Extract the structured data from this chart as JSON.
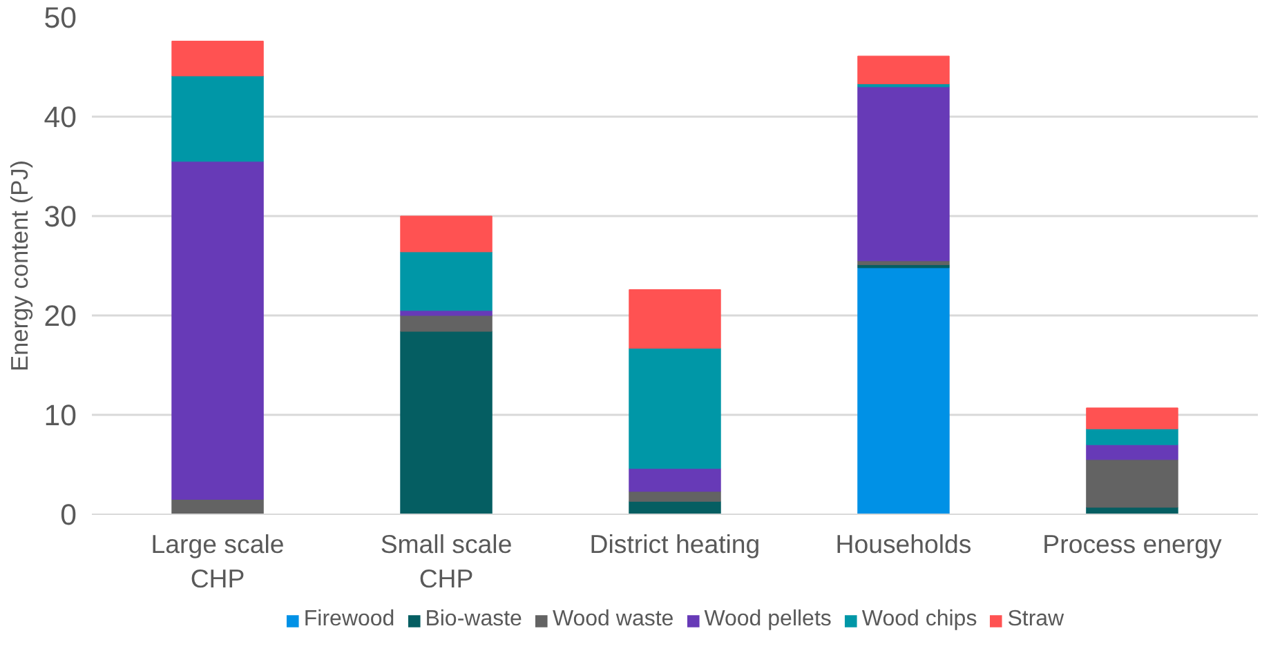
{
  "chart_data": {
    "type": "bar",
    "stacked": true,
    "ylabel": "Energy content (PJ)",
    "categories": [
      "Large scale\nCHP",
      "Small scale\nCHP",
      "District heating",
      "Households",
      "Process energy"
    ],
    "series": [
      {
        "name": "Firewood",
        "color": "#0091e6",
        "values": [
          0,
          0,
          0,
          24.8,
          0
        ]
      },
      {
        "name": "Bio-waste",
        "color": "#055e62",
        "values": [
          0,
          18.4,
          1.3,
          0.3,
          0.7
        ]
      },
      {
        "name": "Wood waste",
        "color": "#636363",
        "values": [
          1.5,
          1.6,
          1.0,
          0.4,
          4.8
        ]
      },
      {
        "name": "Wood pellets",
        "color": "#673ab7",
        "values": [
          34.0,
          0.5,
          2.3,
          17.5,
          1.5
        ]
      },
      {
        "name": "Wood chips",
        "color": "#0097a7",
        "values": [
          8.6,
          5.9,
          12.1,
          0.3,
          1.6
        ]
      },
      {
        "name": "Straw",
        "color": "#ff5252",
        "values": [
          3.5,
          3.6,
          5.9,
          2.8,
          2.1
        ]
      }
    ],
    "ylim": [
      0,
      50
    ],
    "yticks": [
      0,
      10,
      20,
      30,
      40,
      50
    ],
    "grid": "y",
    "legend": "bottom"
  }
}
